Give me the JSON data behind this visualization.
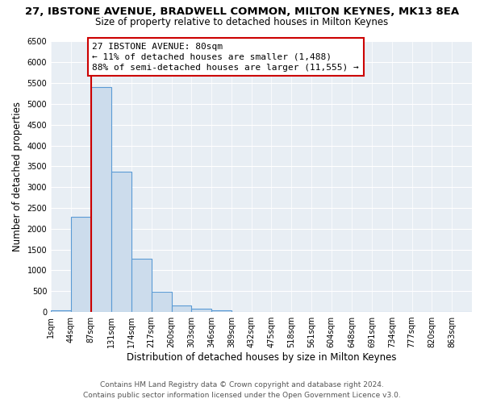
{
  "title": "27, IBSTONE AVENUE, BRADWELL COMMON, MILTON KEYNES, MK13 8EA",
  "subtitle": "Size of property relative to detached houses in Milton Keynes",
  "xlabel": "Distribution of detached houses by size in Milton Keynes",
  "ylabel": "Number of detached properties",
  "bar_color": "#ccdcec",
  "bar_edge_color": "#5b9bd5",
  "categories": [
    "1sqm",
    "44sqm",
    "87sqm",
    "131sqm",
    "174sqm",
    "217sqm",
    "260sqm",
    "303sqm",
    "346sqm",
    "389sqm",
    "432sqm",
    "475sqm",
    "518sqm",
    "561sqm",
    "604sqm",
    "648sqm",
    "691sqm",
    "734sqm",
    "777sqm",
    "820sqm",
    "863sqm"
  ],
  "values": [
    50,
    2280,
    5400,
    3380,
    1280,
    480,
    160,
    70,
    45,
    0,
    0,
    0,
    0,
    0,
    0,
    0,
    0,
    0,
    0,
    0,
    0
  ],
  "ylim": [
    0,
    6500
  ],
  "yticks": [
    0,
    500,
    1000,
    1500,
    2000,
    2500,
    3000,
    3500,
    4000,
    4500,
    5000,
    5500,
    6000,
    6500
  ],
  "property_line_color": "#cc0000",
  "annotation_text": "27 IBSTONE AVENUE: 80sqm\n← 11% of detached houses are smaller (1,488)\n88% of semi-detached houses are larger (11,555) →",
  "annotation_box_color": "#ffffff",
  "annotation_box_edge_color": "#cc0000",
  "footer_line1": "Contains HM Land Registry data © Crown copyright and database right 2024.",
  "footer_line2": "Contains public sector information licensed under the Open Government Licence v3.0.",
  "background_color": "#ffffff",
  "plot_bg_color": "#e8eef4",
  "title_fontsize": 9.5,
  "subtitle_fontsize": 8.5,
  "axis_label_fontsize": 8.5,
  "tick_fontsize": 7,
  "footer_fontsize": 6.5,
  "annotation_fontsize": 8,
  "bin_starts": [
    1,
    44,
    87,
    131,
    174,
    217,
    260,
    303,
    346,
    389,
    432,
    475,
    518,
    561,
    604,
    648,
    691,
    734,
    777,
    820,
    863
  ],
  "bin_width": 43
}
